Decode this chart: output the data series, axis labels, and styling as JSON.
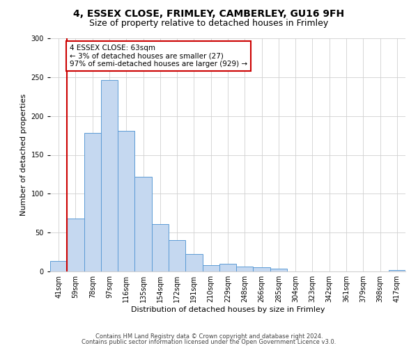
{
  "title": "4, ESSEX CLOSE, FRIMLEY, CAMBERLEY, GU16 9FH",
  "subtitle": "Size of property relative to detached houses in Frimley",
  "xlabel": "Distribution of detached houses by size in Frimley",
  "ylabel": "Number of detached properties",
  "bin_labels": [
    "41sqm",
    "59sqm",
    "78sqm",
    "97sqm",
    "116sqm",
    "135sqm",
    "154sqm",
    "172sqm",
    "191sqm",
    "210sqm",
    "229sqm",
    "248sqm",
    "266sqm",
    "285sqm",
    "304sqm",
    "323sqm",
    "342sqm",
    "361sqm",
    "379sqm",
    "398sqm",
    "417sqm"
  ],
  "bar_values": [
    13,
    68,
    178,
    246,
    181,
    122,
    61,
    40,
    22,
    8,
    10,
    6,
    5,
    4,
    0,
    0,
    0,
    0,
    0,
    0,
    2
  ],
  "bar_color": "#c5d8f0",
  "bar_edge_color": "#5b9bd5",
  "marker_label_line1": "4 ESSEX CLOSE: 63sqm",
  "marker_label_line2": "← 3% of detached houses are smaller (27)",
  "marker_label_line3": "97% of semi-detached houses are larger (929) →",
  "marker_color": "#cc0000",
  "ylim": [
    0,
    300
  ],
  "yticks": [
    0,
    50,
    100,
    150,
    200,
    250,
    300
  ],
  "footer_line1": "Contains HM Land Registry data © Crown copyright and database right 2024.",
  "footer_line2": "Contains public sector information licensed under the Open Government Licence v3.0.",
  "background_color": "#ffffff",
  "grid_color": "#d0d0d0",
  "title_fontsize": 10,
  "subtitle_fontsize": 9,
  "axis_label_fontsize": 8,
  "tick_fontsize": 7,
  "annotation_fontsize": 7.5,
  "footer_fontsize": 6
}
